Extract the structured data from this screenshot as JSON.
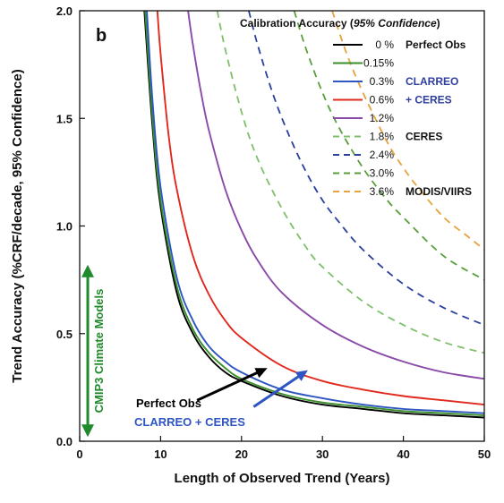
{
  "chart_data": {
    "type": "line",
    "panel_label": "b",
    "xlabel": "Length of Observed Trend (Years)",
    "ylabel": "Trend Accuracy (%CRF/decade, 95% Confidence)",
    "xlim": [
      0,
      50
    ],
    "ylim": [
      0,
      2
    ],
    "x_ticks": [
      "0",
      "10",
      "20",
      "30",
      "40",
      "50"
    ],
    "y_ticks": [
      "0.0",
      "0.5",
      "1.0",
      "1.5",
      "2.0"
    ],
    "grid": false,
    "legend": {
      "title_main": "Calibration Accuracy (",
      "title_italic": "95% Confidence",
      "title_end": ")",
      "placement": "top-right"
    },
    "group_labels": [
      {
        "text": "Perfect Obs",
        "color": "#111111",
        "row": 0
      },
      {
        "text": "CLARREO",
        "color": "#2e3f9e",
        "row": 2
      },
      {
        "text": "+ CERES",
        "color": "#2e3f9e",
        "row": 3
      },
      {
        "text": "CERES",
        "color": "#111111",
        "row": 5
      },
      {
        "text": "MODIS/VIIRS",
        "color": "#111111",
        "row": 8
      }
    ],
    "series": [
      {
        "name": "0 %",
        "color": "#000000",
        "dash": "solid",
        "x": [
          8,
          9,
          10,
          12,
          14,
          16,
          18,
          20,
          25,
          30,
          35,
          40,
          45,
          50
        ],
        "y": [
          2.0,
          1.46,
          1.09,
          0.69,
          0.5,
          0.39,
          0.32,
          0.28,
          0.21,
          0.17,
          0.15,
          0.13,
          0.12,
          0.11
        ]
      },
      {
        "name": "0.15%",
        "color": "#3a8f2a",
        "dash": "solid",
        "x": [
          8.1,
          9,
          10,
          12,
          14,
          16,
          18,
          20,
          25,
          30,
          35,
          40,
          45,
          50
        ],
        "y": [
          2.0,
          1.5,
          1.12,
          0.72,
          0.52,
          0.41,
          0.34,
          0.29,
          0.22,
          0.18,
          0.16,
          0.14,
          0.13,
          0.12
        ]
      },
      {
        "name": "0.3%",
        "color": "#2e55c2",
        "dash": "solid",
        "x": [
          8.3,
          9,
          10,
          12,
          14,
          16,
          18,
          20,
          25,
          30,
          35,
          40,
          45,
          50
        ],
        "y": [
          2.0,
          1.58,
          1.18,
          0.76,
          0.56,
          0.44,
          0.37,
          0.32,
          0.24,
          0.2,
          0.17,
          0.15,
          0.14,
          0.13
        ]
      },
      {
        "name": "0.6%",
        "color": "#e0281e",
        "dash": "solid",
        "x": [
          9.6,
          10,
          11,
          12,
          14,
          16,
          18,
          20,
          25,
          30,
          35,
          40,
          45,
          50
        ],
        "y": [
          2.0,
          1.8,
          1.42,
          1.17,
          0.86,
          0.68,
          0.56,
          0.48,
          0.35,
          0.28,
          0.24,
          0.21,
          0.19,
          0.17
        ]
      },
      {
        "name": "1.2%",
        "color": "#8a4aa8",
        "dash": "solid",
        "x": [
          13.4,
          14,
          15,
          16,
          18,
          20,
          22,
          25,
          30,
          35,
          40,
          45,
          50
        ],
        "y": [
          2.0,
          1.84,
          1.62,
          1.44,
          1.17,
          0.98,
          0.84,
          0.69,
          0.54,
          0.44,
          0.37,
          0.32,
          0.29
        ]
      },
      {
        "name": "1.8%",
        "color": "#7fbf6a",
        "dash": "dashed",
        "x": [
          17,
          18,
          20,
          22,
          25,
          28,
          30,
          35,
          40,
          45,
          50
        ],
        "y": [
          2.0,
          1.82,
          1.53,
          1.31,
          1.08,
          0.9,
          0.81,
          0.65,
          0.54,
          0.46,
          0.41
        ]
      },
      {
        "name": "2.4%",
        "color": "#2a3f9e",
        "dash": "dashed",
        "x": [
          20.9,
          22,
          24,
          26,
          28,
          30,
          32,
          35,
          40,
          45,
          50
        ],
        "y": [
          2.0,
          1.84,
          1.6,
          1.41,
          1.25,
          1.12,
          1.02,
          0.89,
          0.73,
          0.62,
          0.54
        ]
      },
      {
        "name": "3.0%",
        "color": "#5a9e3c",
        "dash": "dashed",
        "x": [
          26.5,
          28,
          30,
          32,
          35,
          38,
          40,
          45,
          50
        ],
        "y": [
          2.0,
          1.82,
          1.62,
          1.46,
          1.27,
          1.12,
          1.04,
          0.86,
          0.75
        ]
      },
      {
        "name": "3.6%",
        "color": "#e8a23c",
        "dash": "dashed",
        "x": [
          31.2,
          33,
          35,
          38,
          40,
          42,
          45,
          48,
          50
        ],
        "y": [
          2.0,
          1.8,
          1.62,
          1.39,
          1.27,
          1.17,
          1.04,
          0.95,
          0.89
        ]
      }
    ],
    "annotations": {
      "cmip3": {
        "text": "CMIP3 Climate Models",
        "color": "#1f8a2a",
        "y_range": [
          0.02,
          0.82
        ],
        "x": 1.0
      },
      "perfect_obs": {
        "text": "Perfect Obs",
        "color": "#000000",
        "from": [
          14.5,
          0.19
        ],
        "to": [
          23.2,
          0.34
        ]
      },
      "clarreo": {
        "text": "CLARREO + CERES",
        "color": "#2e55c2",
        "from": [
          21.5,
          0.16
        ],
        "to": [
          28.2,
          0.33
        ]
      }
    }
  }
}
